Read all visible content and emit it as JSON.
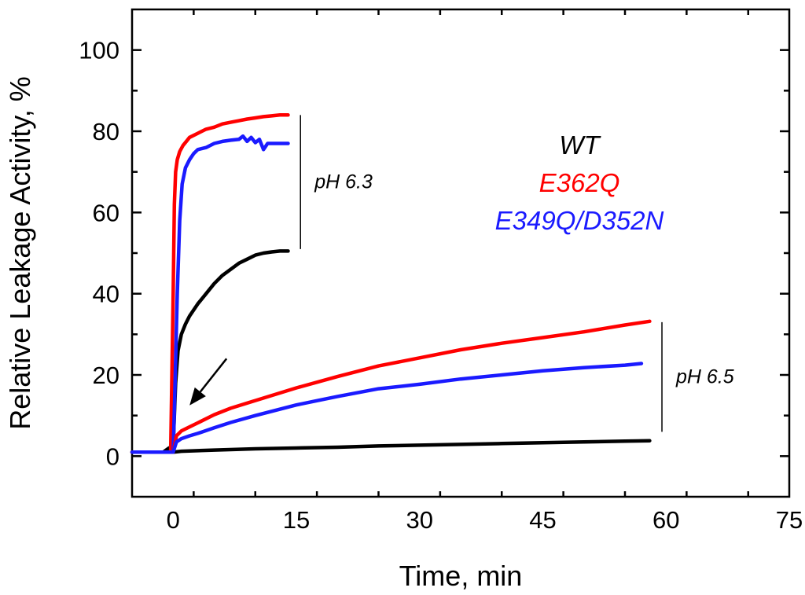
{
  "chart_data": {
    "type": "line",
    "title": "",
    "xlabel": "Time, min",
    "ylabel": "Relative Leakage Activity, %",
    "xlim": [
      -5,
      75
    ],
    "ylim": [
      -10,
      110
    ],
    "xticks": [
      0,
      15,
      30,
      45,
      60,
      75
    ],
    "yticks": [
      0,
      20,
      40,
      60,
      80,
      100
    ],
    "xtick_labels": [
      "0",
      "15",
      "30",
      "45",
      "60",
      "75"
    ],
    "ytick_labels": [
      "0",
      "20",
      "40",
      "60",
      "80",
      "100"
    ],
    "grid": false,
    "legend": {
      "placement": "right",
      "entries": [
        {
          "label": "WT",
          "color": "#000000"
        },
        {
          "label": "E362Q",
          "color": "#ff0000"
        },
        {
          "label": "E349Q/D352N",
          "color": "#1a1aff"
        }
      ]
    },
    "annotations": [
      {
        "text": "pH 6.3",
        "bracket_y": [
          51,
          84
        ],
        "bracket_x": 15.5
      },
      {
        "text": "pH 6.5",
        "bracket_y": [
          6,
          33
        ],
        "bracket_x": 59.5
      }
    ],
    "arrow": {
      "from": [
        6.5,
        24
      ],
      "to": [
        2,
        12.5
      ]
    },
    "series": [
      {
        "name": "WT pH 6.3",
        "color": "#000000",
        "x": [
          -5,
          -1.2,
          -0.5,
          0,
          0.3,
          0.6,
          1,
          1.5,
          2,
          3,
          4,
          5,
          6,
          7,
          8,
          9,
          10,
          11,
          12,
          13,
          14
        ],
        "y": [
          1,
          1,
          2,
          2.5,
          18,
          26,
          30,
          32.5,
          34.5,
          37.5,
          40,
          42.5,
          44.5,
          46,
          47.5,
          48.5,
          49.5,
          50,
          50.3,
          50.5,
          50.5
        ]
      },
      {
        "name": "E362Q pH 6.3",
        "color": "#ff0000",
        "x": [
          -5,
          -0.3,
          0,
          0.15,
          0.3,
          0.5,
          0.8,
          1.2,
          1.6,
          2,
          3,
          4,
          5,
          6,
          7,
          8,
          9,
          10,
          11,
          12,
          13,
          14
        ],
        "y": [
          1,
          1,
          40,
          62,
          70,
          73,
          75,
          76.5,
          77.5,
          78.5,
          79.5,
          80.5,
          81,
          81.8,
          82.2,
          82.6,
          83,
          83.3,
          83.6,
          83.8,
          84,
          84
        ]
      },
      {
        "name": "E349Q/D352N pH 6.3",
        "color": "#1a1aff",
        "x": [
          -5,
          0,
          0.2,
          0.5,
          0.8,
          1.1,
          1.5,
          2,
          2.5,
          3,
          4,
          5,
          6,
          7,
          8,
          8.5,
          9,
          9.5,
          10,
          10.5,
          11,
          11.5,
          12,
          13,
          14
        ],
        "y": [
          1,
          1,
          15,
          40,
          58,
          67,
          71,
          73,
          74.5,
          75.5,
          76,
          77,
          77.5,
          77.8,
          78,
          78.8,
          77.5,
          78.5,
          77.2,
          78,
          75.5,
          77,
          77,
          77,
          77
        ]
      },
      {
        "name": "WT pH 6.5",
        "color": "#000000",
        "x": [
          0,
          1,
          5,
          10,
          15,
          20,
          25,
          30,
          35,
          40,
          45,
          50,
          55,
          58
        ],
        "y": [
          1,
          1.2,
          1.5,
          1.8,
          2,
          2.2,
          2.5,
          2.7,
          2.9,
          3.1,
          3.3,
          3.5,
          3.7,
          3.8
        ]
      },
      {
        "name": "E362Q pH 6.5",
        "color": "#ff0000",
        "x": [
          0,
          0.4,
          1,
          2,
          3,
          5,
          7,
          10,
          15,
          20,
          25,
          30,
          35,
          40,
          45,
          50,
          55,
          58
        ],
        "y": [
          1,
          5,
          6.2,
          7.2,
          8.2,
          10.2,
          11.8,
          13.7,
          16.8,
          19.6,
          22.2,
          24.2,
          26.2,
          27.8,
          29.2,
          30.6,
          32.3,
          33.2
        ]
      },
      {
        "name": "E349Q/D352N pH 6.5",
        "color": "#1a1aff",
        "x": [
          0,
          0.4,
          1,
          2,
          3,
          5,
          7,
          10,
          15,
          20,
          25,
          30,
          35,
          40,
          45,
          50,
          55,
          57
        ],
        "y": [
          1,
          3.5,
          4.3,
          5,
          5.6,
          7,
          8.3,
          10,
          12.6,
          14.7,
          16.6,
          17.7,
          19,
          20,
          21,
          21.8,
          22.4,
          22.8
        ]
      }
    ]
  }
}
